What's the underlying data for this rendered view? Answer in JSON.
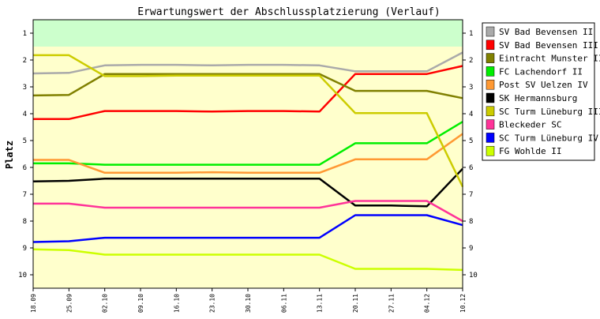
{
  "chart_data": {
    "type": "line",
    "title": "Erwartungswert der Abschlussplatzierung (Verlauf)",
    "xlabel": "",
    "ylabel": "Platz",
    "x": [
      "18.09",
      "25.09",
      "02.10",
      "09.10",
      "16.10",
      "23.10",
      "30.10",
      "06.11",
      "13.11",
      "20.11",
      "27.11",
      "04.12",
      "10.12"
    ],
    "yticks": [
      "1",
      "2",
      "3",
      "4",
      "5",
      "6",
      "7",
      "8",
      "9",
      "10"
    ],
    "ylim": [
      0.5,
      10.5
    ],
    "y_inverted": true,
    "promotion_zone_until": 1.5,
    "grid": false,
    "legend_position": "right",
    "colors": {
      "promotion_zone": "#ccffcc",
      "plot_background": "#ffffcc",
      "frame": "#000000"
    },
    "series": [
      {
        "name": "SV Bad Bevensen II",
        "color": "#aaaaaa",
        "values": [
          2.5,
          2.48,
          2.2,
          2.18,
          2.18,
          2.2,
          2.18,
          2.18,
          2.2,
          2.42,
          2.42,
          2.42,
          1.72
        ]
      },
      {
        "name": "SV Bad Bevensen III",
        "color": "#ff0000",
        "values": [
          4.2,
          4.2,
          3.9,
          3.9,
          3.9,
          3.92,
          3.9,
          3.9,
          3.92,
          2.52,
          2.52,
          2.52,
          2.22
        ]
      },
      {
        "name": "Eintracht Munster II",
        "color": "#808000",
        "values": [
          3.32,
          3.3,
          2.52,
          2.52,
          2.52,
          2.52,
          2.52,
          2.52,
          2.52,
          3.15,
          3.15,
          3.15,
          3.42
        ]
      },
      {
        "name": "FC Lachendorf II",
        "color": "#00ee00",
        "values": [
          5.85,
          5.85,
          5.9,
          5.9,
          5.9,
          5.9,
          5.9,
          5.9,
          5.9,
          5.1,
          5.1,
          5.1,
          4.3
        ]
      },
      {
        "name": "Post SV Uelzen IV",
        "color": "#ff9933",
        "values": [
          5.72,
          5.72,
          6.2,
          6.2,
          6.2,
          6.18,
          6.2,
          6.2,
          6.2,
          5.7,
          5.7,
          5.7,
          4.75
        ]
      },
      {
        "name": "SK Hermannsburg",
        "color": "#000000",
        "values": [
          6.52,
          6.5,
          6.42,
          6.42,
          6.42,
          6.42,
          6.42,
          6.42,
          6.42,
          7.42,
          7.42,
          7.45,
          6.05
        ]
      },
      {
        "name": "SC Turm Lüneburg III",
        "color": "#cccc00",
        "values": [
          1.82,
          1.82,
          2.6,
          2.6,
          2.58,
          2.58,
          2.58,
          2.58,
          2.58,
          3.98,
          3.98,
          3.98,
          6.72
        ]
      },
      {
        "name": "Bleckeder SC",
        "color": "#ff3399",
        "values": [
          7.35,
          7.35,
          7.5,
          7.5,
          7.5,
          7.5,
          7.5,
          7.5,
          7.5,
          7.25,
          7.25,
          7.25,
          8.0
        ]
      },
      {
        "name": "SC Turm Lüneburg IV",
        "color": "#0000ff",
        "values": [
          8.78,
          8.75,
          8.62,
          8.62,
          8.62,
          8.62,
          8.62,
          8.62,
          8.62,
          7.78,
          7.78,
          7.78,
          8.15
        ]
      },
      {
        "name": "FG Wohlde II",
        "color": "#ccff00",
        "values": [
          9.05,
          9.08,
          9.25,
          9.25,
          9.25,
          9.25,
          9.25,
          9.25,
          9.25,
          9.78,
          9.78,
          9.78,
          9.82
        ]
      }
    ]
  }
}
